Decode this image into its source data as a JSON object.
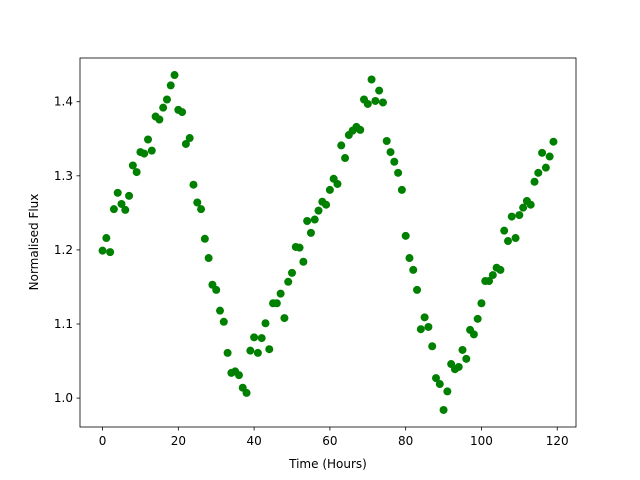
{
  "chart_data": {
    "type": "scatter",
    "xlabel": "Time (Hours)",
    "ylabel": "Normalised Flux",
    "color": "green",
    "x": [
      0,
      1,
      2,
      3,
      4,
      5,
      6,
      7,
      8,
      9,
      10,
      11,
      12,
      13,
      14,
      15,
      16,
      17,
      18,
      19,
      20,
      21,
      22,
      23,
      24,
      25,
      26,
      27,
      28,
      29,
      30,
      31,
      32,
      33,
      34,
      35,
      36,
      37,
      38,
      39,
      40,
      41,
      42,
      43,
      44,
      45,
      46,
      47,
      48,
      49,
      50,
      51,
      52,
      53,
      54,
      55,
      56,
      57,
      58,
      59,
      60,
      61,
      62,
      63,
      64,
      65,
      66,
      67,
      68,
      69,
      70,
      71,
      72,
      73,
      74,
      75,
      76,
      77,
      78,
      79,
      80,
      81,
      82,
      83,
      84,
      85,
      86,
      87,
      88,
      89,
      90,
      91,
      92,
      93,
      94,
      95,
      96,
      97,
      98,
      99,
      100,
      101,
      102,
      103,
      104,
      105,
      106,
      107,
      108,
      109,
      110,
      111,
      112,
      113,
      114,
      115,
      116,
      117,
      118,
      119
    ],
    "values": [
      1.199,
      1.216,
      1.197,
      1.255,
      1.277,
      1.262,
      1.254,
      1.273,
      1.314,
      1.305,
      1.332,
      1.33,
      1.349,
      1.334,
      1.38,
      1.376,
      1.392,
      1.403,
      1.422,
      1.436,
      1.389,
      1.386,
      1.343,
      1.351,
      1.288,
      1.264,
      1.255,
      1.215,
      1.189,
      1.153,
      1.146,
      1.118,
      1.103,
      1.061,
      1.034,
      1.036,
      1.031,
      1.014,
      1.007,
      1.064,
      1.082,
      1.061,
      1.081,
      1.101,
      1.066,
      1.128,
      1.128,
      1.141,
      1.108,
      1.157,
      1.169,
      1.204,
      1.203,
      1.184,
      1.239,
      1.223,
      1.241,
      1.253,
      1.265,
      1.261,
      1.281,
      1.296,
      1.289,
      1.341,
      1.324,
      1.355,
      1.361,
      1.366,
      1.362,
      1.403,
      1.397,
      1.43,
      1.401,
      1.415,
      1.399,
      1.347,
      1.332,
      1.319,
      1.304,
      1.281,
      1.219,
      1.189,
      1.173,
      1.146,
      1.093,
      1.109,
      1.096,
      1.07,
      1.027,
      1.019,
      0.984,
      1.009,
      1.046,
      1.039,
      1.042,
      1.065,
      1.053,
      1.092,
      1.086,
      1.107,
      1.128,
      1.158,
      1.158,
      1.166,
      1.176,
      1.173,
      1.226,
      1.212,
      1.245,
      1.216,
      1.247,
      1.257,
      1.266,
      1.261,
      1.292,
      1.304,
      1.331,
      1.311,
      1.326,
      1.346
    ],
    "xlim": [
      -5.95,
      124.95
    ],
    "xticks": [
      0,
      20,
      40,
      60,
      80,
      100,
      120
    ],
    "ylim": [
      0.961,
      1.459
    ],
    "yticks": [
      {
        "value": 1,
        "label": "1.0"
      },
      1.1,
      1.2,
      1.3,
      1.4
    ]
  }
}
